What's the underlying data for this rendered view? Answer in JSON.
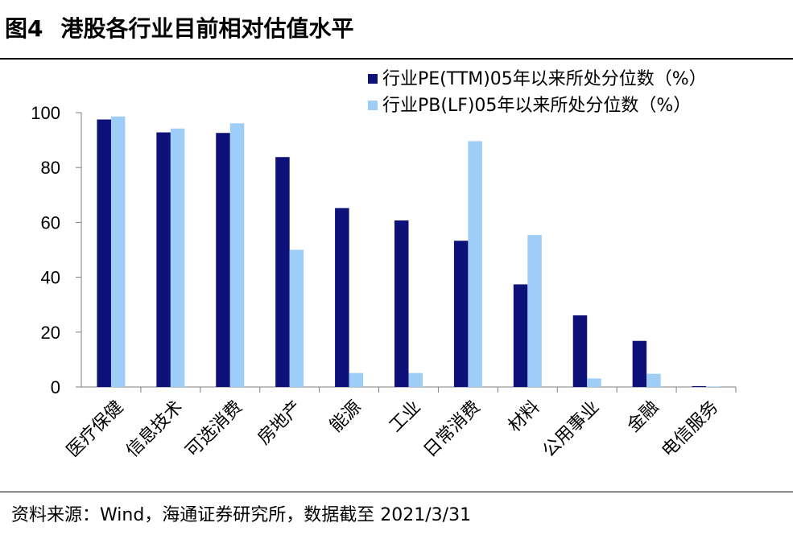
{
  "figure": {
    "number": "图4",
    "title": "港股各行业目前相对估值水平"
  },
  "source": "资料来源：Wind，海通证券研究所，数据截至 2021/3/31",
  "colors": {
    "series1": "#0d1178",
    "series2": "#9ecdf8",
    "axis": "#7f7f7f"
  },
  "chart_data": {
    "type": "bar",
    "categories": [
      "医疗保健",
      "信息技术",
      "可选消费",
      "房地产",
      "能源",
      "工业",
      "日常消费",
      "材料",
      "公用事业",
      "金融",
      "电信服务"
    ],
    "series": [
      {
        "name": "行业PE(TTM)05年以来所处分位数（%）",
        "values": [
          97.5,
          92.8,
          92.6,
          83.8,
          65.2,
          60.7,
          53.3,
          37.4,
          26.1,
          16.8,
          0.3
        ]
      },
      {
        "name": "行业PB(LF)05年以来所处分位数（%）",
        "values": [
          98.6,
          94.2,
          96.1,
          50.0,
          5.1,
          5.1,
          89.6,
          55.4,
          3.1,
          4.8,
          0.2
        ]
      }
    ],
    "ylim": [
      0,
      100
    ],
    "yticks": [
      "0",
      "20",
      "40",
      "60",
      "80",
      "100"
    ],
    "grid": false,
    "legend_position": "top-right"
  }
}
